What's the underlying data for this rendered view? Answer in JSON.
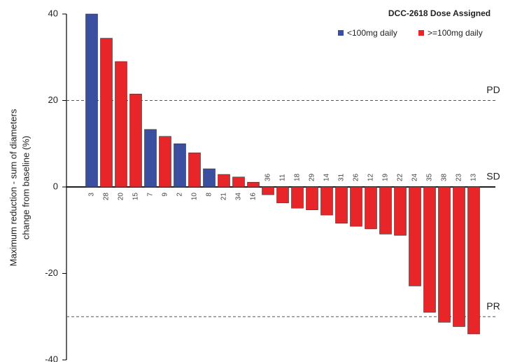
{
  "chart_data": {
    "type": "bar",
    "legend_title": "DCC-2618 Dose Assigned",
    "ylabel": [
      "Maximum reduction - sum of diameters",
      "change from baseline (%)"
    ],
    "categories": [
      "3",
      "28",
      "20",
      "15",
      "7",
      "9",
      "2",
      "10",
      "8",
      "21",
      "34",
      "16",
      "36",
      "11",
      "18",
      "29",
      "14",
      "31",
      "26",
      "12",
      "19",
      "22",
      "24",
      "35",
      "38",
      "23",
      "13"
    ],
    "series": [
      {
        "name": "<100mg daily",
        "color": "#3a4fa0",
        "values": [
          40,
          null,
          null,
          null,
          13.3,
          null,
          10,
          null,
          4.2,
          null,
          null,
          null,
          null,
          null,
          null,
          null,
          null,
          null,
          null,
          null,
          null,
          null,
          null,
          null,
          null,
          null,
          null
        ]
      },
      {
        "name": ">=100mg daily",
        "color": "#e8262a",
        "values": [
          null,
          34.4,
          29,
          21.5,
          null,
          11.7,
          null,
          7.9,
          null,
          2.9,
          2.3,
          1.1,
          -1.8,
          -3.7,
          -4.9,
          -5.3,
          -6.5,
          -8.4,
          -9.1,
          -9.7,
          -10.9,
          -11.2,
          -22.9,
          -29,
          -31.3,
          -32.3,
          -34
        ]
      }
    ],
    "reference_lines": [
      {
        "value": 20,
        "label": "PD"
      },
      {
        "value": 0,
        "label": "SD"
      },
      {
        "value": -30,
        "label": "PR"
      }
    ],
    "ylim": [
      -40,
      40
    ],
    "yticks": [
      40,
      20,
      0,
      -20,
      -40
    ],
    "legend": "top-right"
  }
}
